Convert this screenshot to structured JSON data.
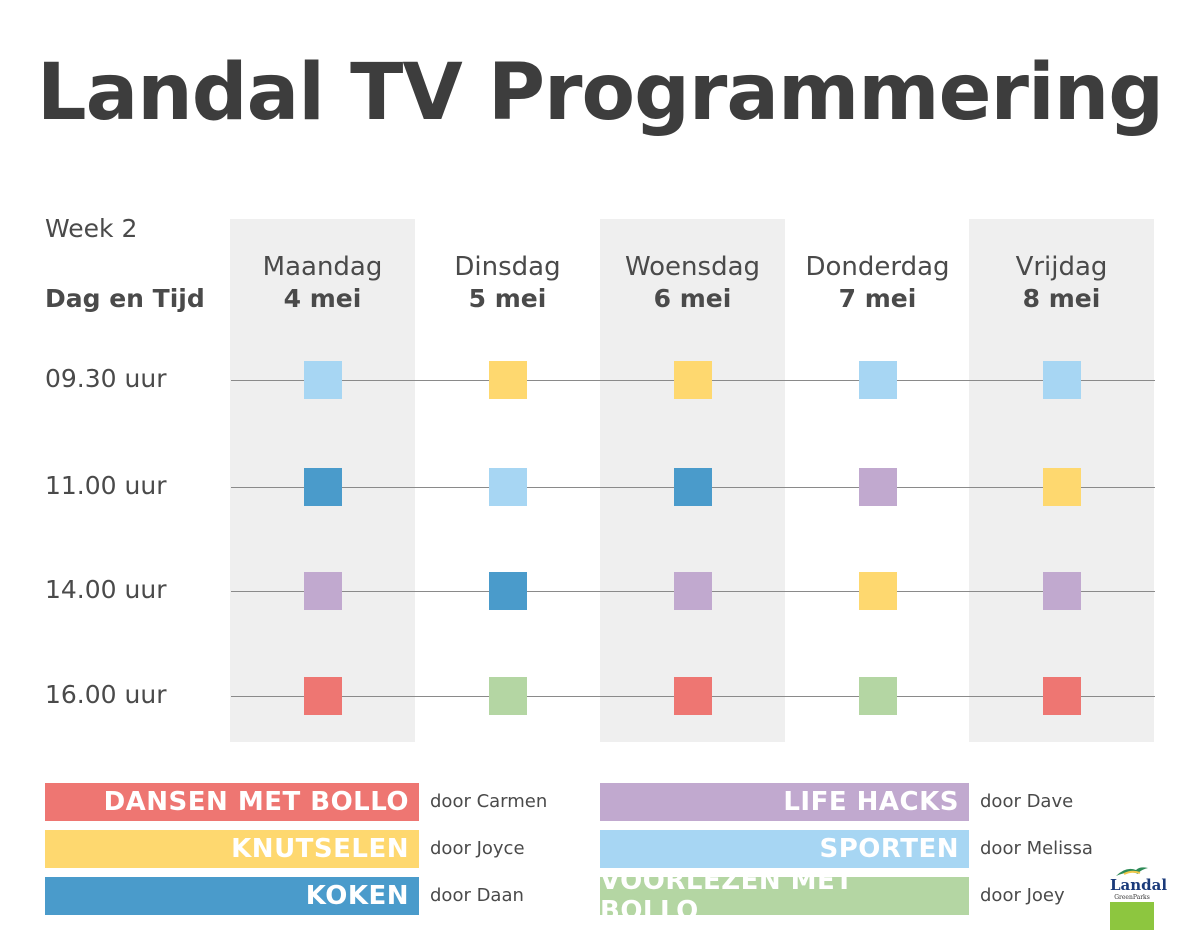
{
  "title": "Landal TV Programmering",
  "week_label": "Week 2",
  "day_time_label": "Dag en Tijd",
  "days": [
    {
      "name": "Maandag",
      "date": "4 mei",
      "shaded": true
    },
    {
      "name": "Dinsdag",
      "date": "5 mei",
      "shaded": false
    },
    {
      "name": "Woensdag",
      "date": "6 mei",
      "shaded": true
    },
    {
      "name": "Donderdag",
      "date": "7 mei",
      "shaded": false
    },
    {
      "name": "Vrijdag",
      "date": "8 mei",
      "shaded": true
    }
  ],
  "times": [
    "09.30 uur",
    "11.00 uur",
    "14.00 uur",
    "16.00 uur"
  ],
  "schedule": [
    [
      "sporten",
      "knutselen",
      "knutselen",
      "sporten",
      "sporten"
    ],
    [
      "koken",
      "sporten",
      "koken",
      "life_hacks",
      "knutselen"
    ],
    [
      "life_hacks",
      "koken",
      "life_hacks",
      "knutselen",
      "life_hacks"
    ],
    [
      "dansen",
      "voorlezen",
      "dansen",
      "voorlezen",
      "dansen"
    ]
  ],
  "programs": {
    "dansen": {
      "label": "DANSEN MET BOLLO",
      "by": "door Carmen",
      "color": "#ee7672"
    },
    "knutselen": {
      "label": "KNUTSELEN",
      "by": "door Joyce",
      "color": "#fed86f"
    },
    "koken": {
      "label": "KOKEN",
      "by": "door Daan",
      "color": "#4a9bcb"
    },
    "life_hacks": {
      "label": "LIFE HACKS",
      "by": "door Dave",
      "color": "#c1a9cf"
    },
    "sporten": {
      "label": "SPORTEN",
      "by": "door Melissa",
      "color": "#a7d6f3"
    },
    "voorlezen": {
      "label": "VOORLEZEN MET BOLLO",
      "by": "door Joey",
      "color": "#b4d6a3"
    }
  },
  "legend_left": [
    "dansen",
    "knutselen",
    "koken"
  ],
  "legend_right": [
    "life_hacks",
    "sporten",
    "voorlezen"
  ],
  "logo": {
    "name": "Landal",
    "sub": "GreenParks",
    "icon": "landal-logo-icon"
  }
}
